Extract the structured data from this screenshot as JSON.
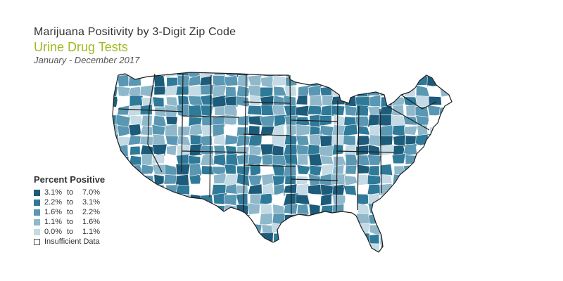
{
  "header": {
    "title": "Marijuana Positivity by 3-Digit Zip Code",
    "subtitle": "Urine Drug Tests",
    "dates": "January - December 2017",
    "subtitle_color": "#a3b81f"
  },
  "legend": {
    "title": "Percent Positive",
    "bins": [
      {
        "low": "3.1%",
        "sep": "to",
        "high": "7.0%",
        "color": "#1d5b7a"
      },
      {
        "low": "2.2%",
        "sep": "to",
        "high": "3.1%",
        "color": "#2f7a99"
      },
      {
        "low": "1.6%",
        "sep": "to",
        "high": "2.2%",
        "color": "#5a97b2"
      },
      {
        "low": "1.1%",
        "sep": "to",
        "high": "1.6%",
        "color": "#8fb8cb"
      },
      {
        "low": "0.0%",
        "sep": "to",
        "high": "1.1%",
        "color": "#c4dae4"
      }
    ],
    "insufficient_label": "Insufficient Data",
    "insufficient_color": "#ffffff"
  },
  "map": {
    "state_border_color": "#1e1e1e",
    "zip_border_color": "#ffffff",
    "seed": 17
  }
}
